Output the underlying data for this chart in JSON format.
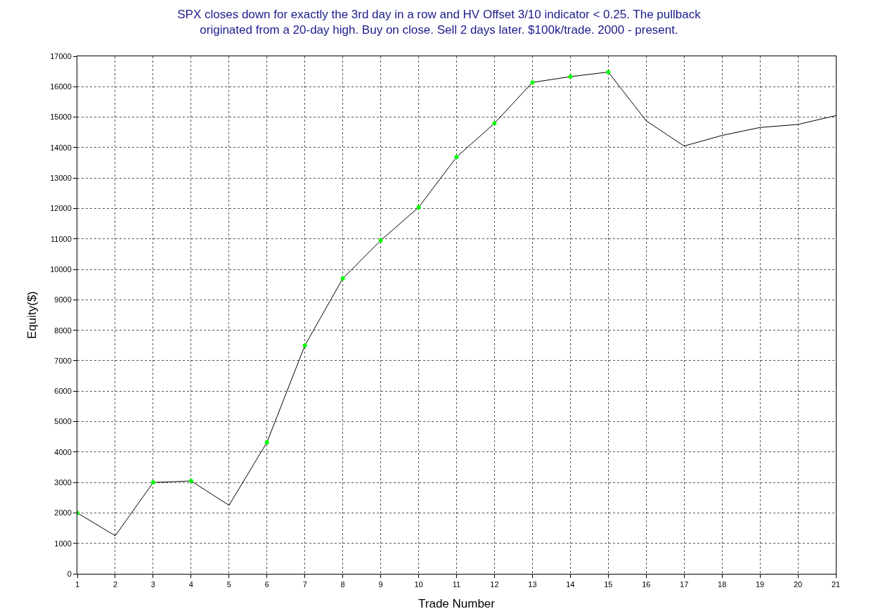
{
  "chart_data": {
    "type": "line",
    "title": "SPX closes down for exactly the 3rd day in a row and HV Offset 3/10 indicator < 0.25. The pullback\noriginated from a 20-day high. Buy on close. Sell 2 days later. $100k/trade. 2000 - present.",
    "xlabel": "Trade Number",
    "ylabel": "Equity($)",
    "x": [
      1,
      2,
      3,
      4,
      5,
      6,
      7,
      8,
      9,
      10,
      11,
      12,
      13,
      14,
      15,
      16,
      17,
      18,
      19,
      20,
      21
    ],
    "series": [
      {
        "color": "#000000",
        "marker": "none",
        "values": [
          2000,
          1250,
          3000,
          3050,
          2250,
          4320,
          7500,
          9700,
          10950,
          12040,
          13690,
          14800,
          16140,
          16330,
          16480,
          14880,
          14050,
          14400,
          14660,
          14760,
          15050
        ]
      },
      {
        "type": "scatter",
        "color": "#00ff00",
        "marker": "circle",
        "x": [
          1,
          3,
          4,
          6,
          7,
          8,
          9,
          10,
          11,
          12,
          13,
          14,
          15
        ],
        "values": [
          2000,
          3000,
          3050,
          4320,
          7500,
          9700,
          10950,
          12040,
          13690,
          14800,
          16140,
          16330,
          16480
        ]
      }
    ],
    "xlim": [
      1,
      21
    ],
    "xticks": [
      1,
      2,
      3,
      4,
      5,
      6,
      7,
      8,
      9,
      10,
      11,
      12,
      13,
      14,
      15,
      16,
      17,
      18,
      19,
      20,
      21
    ],
    "ylim": [
      0,
      17000
    ],
    "yticks": [
      0,
      1000,
      2000,
      3000,
      4000,
      5000,
      6000,
      7000,
      8000,
      9000,
      10000,
      11000,
      12000,
      13000,
      14000,
      15000,
      16000,
      17000
    ],
    "grid": true
  }
}
